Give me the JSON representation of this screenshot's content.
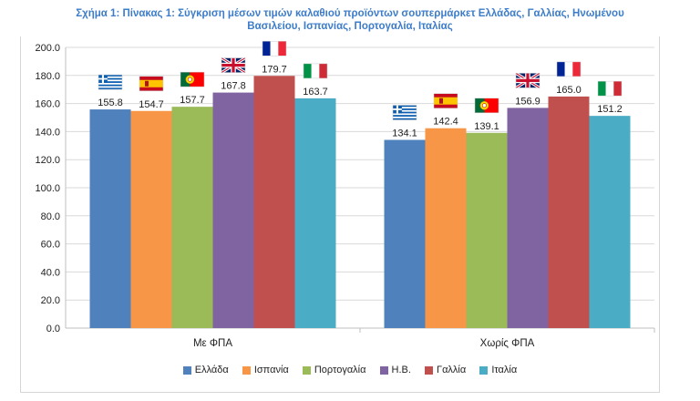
{
  "chart_data": {
    "type": "bar",
    "title": "Σχήμα 1: Πίνακας 1: Σύγκριση μέσων τιμών καλαθιού προϊόντων σουπερμάρκετ Ελλάδας, Γαλλίας, Ηνωμένου Βασιλείου, Ισπανίας, Πορτογαλία, Ιταλίας",
    "title_lines": [
      "Σχήμα 1: Πίνακας 1: Σύγκριση μέσων τιμών καλαθιού προϊόντων σουπερμάρκετ Ελλάδας, Γαλλίας, Ηνωμένου",
      "Βασιλείου, Ισπανίας, Πορτογαλία, Ιταλίας"
    ],
    "categories": [
      "Με ΦΠΑ",
      "Χωρίς ΦΠΑ"
    ],
    "ylim": [
      0,
      200
    ],
    "yticks": [
      "0.0",
      "20.0",
      "40.0",
      "60.0",
      "80.0",
      "100.0",
      "120.0",
      "140.0",
      "160.0",
      "180.0",
      "200.0"
    ],
    "grid": true,
    "legend_position": "bottom",
    "series": [
      {
        "name": "Ελλάδα",
        "color": "#4f81bd",
        "flag": "greece",
        "values": [
          155.8,
          134.1
        ],
        "labels": [
          "155.8",
          "134.1"
        ]
      },
      {
        "name": "Ισπανία",
        "color": "#f79646",
        "flag": "spain",
        "values": [
          154.7,
          142.4
        ],
        "labels": [
          "154.7",
          "142.4"
        ]
      },
      {
        "name": "Πορτογαλία",
        "color": "#9bbb59",
        "flag": "portugal",
        "values": [
          157.7,
          139.1
        ],
        "labels": [
          "157.7",
          "139.1"
        ]
      },
      {
        "name": "Η.Β.",
        "color": "#8064a2",
        "flag": "uk",
        "values": [
          167.8,
          156.9
        ],
        "labels": [
          "167.8",
          "156.9"
        ]
      },
      {
        "name": "Γαλλία",
        "color": "#c0504d",
        "flag": "france",
        "values": [
          179.7,
          165.0
        ],
        "labels": [
          "179.7",
          "165.0"
        ]
      },
      {
        "name": "Ιταλία",
        "color": "#4bacc6",
        "flag": "italy",
        "values": [
          163.7,
          151.2
        ],
        "labels": [
          "163.7",
          "151.2"
        ]
      }
    ]
  }
}
